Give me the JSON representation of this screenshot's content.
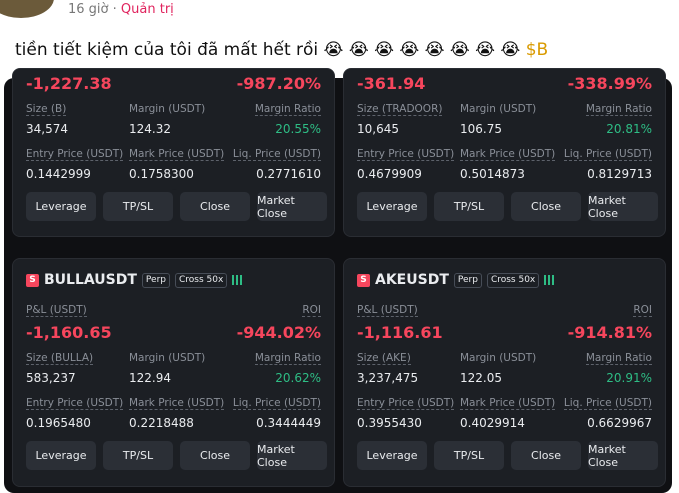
{
  "header": {
    "time": "16 giờ",
    "separator": "·",
    "role": "Quản trị"
  },
  "post": {
    "message": "tiền tiết kiệm của tôi đã mất hết rồi 😭 😭 😭 😭 😭 😭 😭 😭",
    "cashtag": "$B"
  },
  "positions": [
    {
      "pnl": "-1,227.38",
      "roi": "-987.20%",
      "size_label": "Size (B)",
      "size": "34,574",
      "margin_label": "Margin (USDT)",
      "margin": "124.32",
      "margin_ratio_label": "Margin Ratio",
      "margin_ratio": "20.55%",
      "entry_label": "Entry Price (USDT)",
      "entry": "0.1442999",
      "mark_label": "Mark Price (USDT)",
      "mark": "0.1758300",
      "liq_label": "Liq. Price (USDT)",
      "liq": "0.2771610",
      "buttons": [
        "Leverage",
        "TP/SL",
        "Close",
        "Market Close"
      ]
    },
    {
      "pnl": "-361.94",
      "roi": "-338.99%",
      "size_label": "Size (TRADOOR)",
      "size": "10,645",
      "margin_label": "Margin (USDT)",
      "margin": "106.75",
      "margin_ratio_label": "Margin Ratio",
      "margin_ratio": "20.81%",
      "entry_label": "Entry Price (USDT)",
      "entry": "0.4679909",
      "mark_label": "Mark Price (USDT)",
      "mark": "0.5014873",
      "liq_label": "Liq. Price (USDT)",
      "liq": "0.8129713",
      "buttons": [
        "Leverage",
        "TP/SL",
        "Close",
        "Market Close"
      ]
    },
    {
      "icon": "S",
      "symbol": "BULLAUSDT",
      "type_badge": "Perp",
      "mode_badge": "Cross 50x",
      "pnl_label": "P&L (USDT)",
      "roi_label": "ROI",
      "pnl": "-1,160.65",
      "roi": "-944.02%",
      "size_label": "Size (BULLA)",
      "size": "583,237",
      "margin_label": "Margin (USDT)",
      "margin": "122.94",
      "margin_ratio_label": "Margin Ratio",
      "margin_ratio": "20.62%",
      "entry_label": "Entry Price (USDT)",
      "entry": "0.1965480",
      "mark_label": "Mark Price (USDT)",
      "mark": "0.2218488",
      "liq_label": "Liq. Price (USDT)",
      "liq": "0.3444449",
      "buttons": [
        "Leverage",
        "TP/SL",
        "Close",
        "Market Close"
      ]
    },
    {
      "icon": "S",
      "symbol": "AKEUSDT",
      "type_badge": "Perp",
      "mode_badge": "Cross 50x",
      "pnl_label": "P&L (USDT)",
      "roi_label": "ROI",
      "pnl": "-1,116.61",
      "roi": "-914.81%",
      "size_label": "Size (AKE)",
      "size": "3,237,475",
      "margin_label": "Margin (USDT)",
      "margin": "122.05",
      "margin_ratio_label": "Margin Ratio",
      "margin_ratio": "20.91%",
      "entry_label": "Entry Price (USDT)",
      "entry": "0.3955430",
      "mark_label": "Mark Price (USDT)",
      "mark": "0.4029914",
      "liq_label": "Liq. Price (USDT)",
      "liq": "0.6629967",
      "buttons": [
        "Leverage",
        "TP/SL",
        "Close",
        "Market Close"
      ]
    }
  ]
}
